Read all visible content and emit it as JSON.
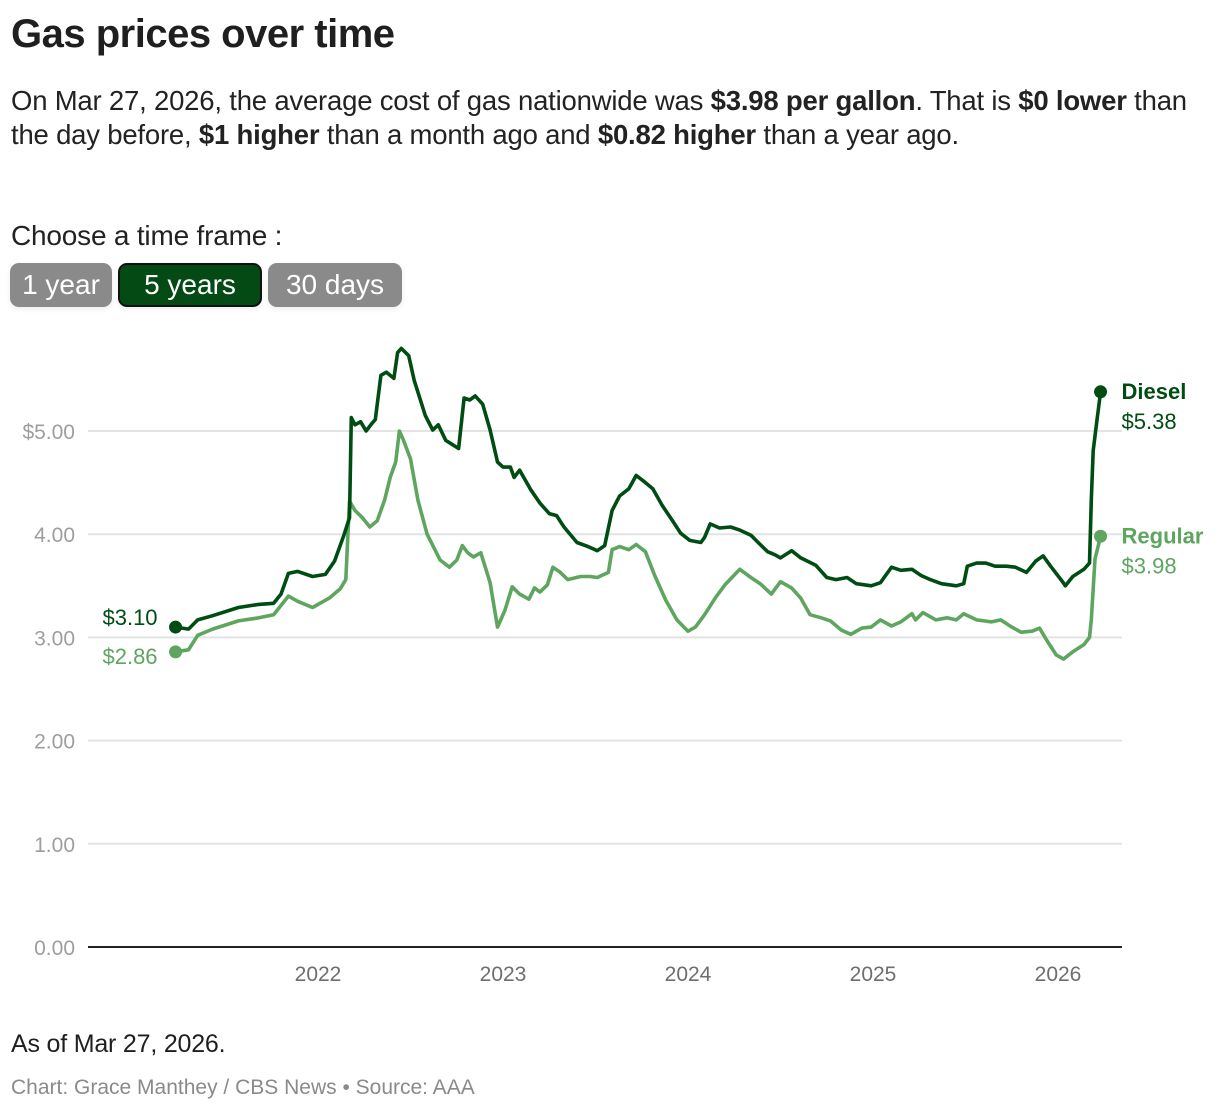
{
  "header": {
    "title": "Gas prices over time",
    "summary": {
      "p1": "On Mar 27, 2026, the average cost of gas nationwide was ",
      "b1": "$3.98 per gallon",
      "p2": ". That is ",
      "b2": "$0 lower",
      "p3": " than the day before, ",
      "b3": "$1 higher",
      "p4": " than a month ago and ",
      "b4": "$0.82 higher",
      "p5": " than a year ago."
    }
  },
  "controls": {
    "label": "Choose a time frame :",
    "buttons": [
      {
        "label": "1 year",
        "active": false
      },
      {
        "label": "5 years",
        "active": true
      },
      {
        "label": "30 days",
        "active": false
      }
    ]
  },
  "colors": {
    "diesel": "#004d14",
    "regular": "#5ea55f",
    "active_button": "#034a14",
    "inactive_button": "#8a8a8a",
    "grid": "#e3e3e3",
    "axis": "#222222"
  },
  "chart_data": {
    "type": "line",
    "title": "Gas prices over time",
    "xlabel": "",
    "ylabel": "",
    "ylim": [
      0,
      5.8
    ],
    "xlim": [
      2021.23,
      2026.23
    ],
    "grid": true,
    "y_ticks": [
      {
        "value": 0,
        "label": "0.00"
      },
      {
        "value": 1,
        "label": "1.00"
      },
      {
        "value": 2,
        "label": "2.00"
      },
      {
        "value": 3,
        "label": "3.00"
      },
      {
        "value": 4,
        "label": "4.00"
      },
      {
        "value": 5,
        "label": "$5.00"
      }
    ],
    "x_ticks": [
      {
        "value": 2022,
        "label": "2022"
      },
      {
        "value": 2023,
        "label": "2023"
      },
      {
        "value": 2024,
        "label": "2024"
      },
      {
        "value": 2025,
        "label": "2025"
      },
      {
        "value": 2026,
        "label": "2026"
      }
    ],
    "legend": "inline-right",
    "series": [
      {
        "name": "Diesel",
        "start_label": "$3.10",
        "end_label": "$5.38",
        "start_value": 3.1,
        "end_value": 5.38,
        "points": [
          [
            2021.23,
            3.1
          ],
          [
            2021.3,
            3.08
          ],
          [
            2021.35,
            3.17
          ],
          [
            2021.43,
            3.21
          ],
          [
            2021.57,
            3.29
          ],
          [
            2021.68,
            3.32
          ],
          [
            2021.76,
            3.33
          ],
          [
            2021.8,
            3.42
          ],
          [
            2021.84,
            3.62
          ],
          [
            2021.89,
            3.64
          ],
          [
            2021.97,
            3.59
          ],
          [
            2022.04,
            3.61
          ],
          [
            2022.09,
            3.74
          ],
          [
            2022.14,
            3.99
          ],
          [
            2022.17,
            4.16
          ],
          [
            2022.18,
            5.13
          ],
          [
            2022.2,
            5.06
          ],
          [
            2022.23,
            5.09
          ],
          [
            2022.26,
            5.0
          ],
          [
            2022.29,
            5.07
          ],
          [
            2022.31,
            5.11
          ],
          [
            2022.34,
            5.54
          ],
          [
            2022.37,
            5.57
          ],
          [
            2022.41,
            5.51
          ],
          [
            2022.43,
            5.76
          ],
          [
            2022.45,
            5.8
          ],
          [
            2022.49,
            5.73
          ],
          [
            2022.52,
            5.49
          ],
          [
            2022.58,
            5.15
          ],
          [
            2022.62,
            5.01
          ],
          [
            2022.65,
            5.06
          ],
          [
            2022.69,
            4.91
          ],
          [
            2022.76,
            4.83
          ],
          [
            2022.79,
            5.32
          ],
          [
            2022.82,
            5.3
          ],
          [
            2022.85,
            5.34
          ],
          [
            2022.89,
            5.26
          ],
          [
            2022.93,
            5.01
          ],
          [
            2022.97,
            4.7
          ],
          [
            2023.0,
            4.65
          ],
          [
            2023.04,
            4.65
          ],
          [
            2023.06,
            4.55
          ],
          [
            2023.09,
            4.62
          ],
          [
            2023.15,
            4.43
          ],
          [
            2023.2,
            4.3
          ],
          [
            2023.25,
            4.2
          ],
          [
            2023.29,
            4.18
          ],
          [
            2023.33,
            4.07
          ],
          [
            2023.4,
            3.92
          ],
          [
            2023.46,
            3.88
          ],
          [
            2023.51,
            3.84
          ],
          [
            2023.55,
            3.89
          ],
          [
            2023.59,
            4.23
          ],
          [
            2023.63,
            4.37
          ],
          [
            2023.68,
            4.44
          ],
          [
            2023.72,
            4.57
          ],
          [
            2023.77,
            4.5
          ],
          [
            2023.81,
            4.44
          ],
          [
            2023.86,
            4.28
          ],
          [
            2023.92,
            4.12
          ],
          [
            2023.96,
            4.01
          ],
          [
            2024.01,
            3.94
          ],
          [
            2024.07,
            3.92
          ],
          [
            2024.09,
            3.97
          ],
          [
            2024.12,
            4.1
          ],
          [
            2024.17,
            4.06
          ],
          [
            2024.23,
            4.07
          ],
          [
            2024.28,
            4.04
          ],
          [
            2024.34,
            3.99
          ],
          [
            2024.39,
            3.9
          ],
          [
            2024.43,
            3.83
          ],
          [
            2024.47,
            3.8
          ],
          [
            2024.5,
            3.77
          ],
          [
            2024.56,
            3.84
          ],
          [
            2024.61,
            3.77
          ],
          [
            2024.69,
            3.7
          ],
          [
            2024.75,
            3.58
          ],
          [
            2024.8,
            3.56
          ],
          [
            2024.86,
            3.58
          ],
          [
            2024.91,
            3.52
          ],
          [
            2024.99,
            3.5
          ],
          [
            2025.04,
            3.53
          ],
          [
            2025.1,
            3.68
          ],
          [
            2025.15,
            3.65
          ],
          [
            2025.21,
            3.66
          ],
          [
            2025.26,
            3.6
          ],
          [
            2025.31,
            3.56
          ],
          [
            2025.37,
            3.52
          ],
          [
            2025.45,
            3.5
          ],
          [
            2025.49,
            3.52
          ],
          [
            2025.51,
            3.69
          ],
          [
            2025.56,
            3.72
          ],
          [
            2025.61,
            3.72
          ],
          [
            2025.66,
            3.69
          ],
          [
            2025.72,
            3.69
          ],
          [
            2025.77,
            3.68
          ],
          [
            2025.83,
            3.63
          ],
          [
            2025.88,
            3.74
          ],
          [
            2025.92,
            3.79
          ],
          [
            2025.96,
            3.69
          ],
          [
            2026.02,
            3.55
          ],
          [
            2026.04,
            3.5
          ],
          [
            2026.08,
            3.59
          ],
          [
            2026.14,
            3.66
          ],
          [
            2026.17,
            3.72
          ],
          [
            2026.18,
            4.33
          ],
          [
            2026.19,
            4.81
          ],
          [
            2026.21,
            5.1
          ],
          [
            2026.23,
            5.38
          ]
        ]
      },
      {
        "name": "Regular",
        "start_label": "$2.86",
        "end_label": "$3.98",
        "start_value": 2.86,
        "end_value": 3.98,
        "points": [
          [
            2021.23,
            2.86
          ],
          [
            2021.3,
            2.88
          ],
          [
            2021.35,
            3.02
          ],
          [
            2021.43,
            3.08
          ],
          [
            2021.57,
            3.16
          ],
          [
            2021.68,
            3.19
          ],
          [
            2021.76,
            3.22
          ],
          [
            2021.84,
            3.4
          ],
          [
            2021.89,
            3.35
          ],
          [
            2021.97,
            3.29
          ],
          [
            2022.06,
            3.38
          ],
          [
            2022.12,
            3.47
          ],
          [
            2022.15,
            3.56
          ],
          [
            2022.17,
            4.32
          ],
          [
            2022.2,
            4.23
          ],
          [
            2022.24,
            4.16
          ],
          [
            2022.28,
            4.07
          ],
          [
            2022.32,
            4.13
          ],
          [
            2022.36,
            4.33
          ],
          [
            2022.39,
            4.55
          ],
          [
            2022.42,
            4.7
          ],
          [
            2022.44,
            5.0
          ],
          [
            2022.46,
            4.92
          ],
          [
            2022.5,
            4.73
          ],
          [
            2022.54,
            4.33
          ],
          [
            2022.59,
            4.0
          ],
          [
            2022.66,
            3.75
          ],
          [
            2022.71,
            3.68
          ],
          [
            2022.75,
            3.75
          ],
          [
            2022.78,
            3.89
          ],
          [
            2022.81,
            3.82
          ],
          [
            2022.84,
            3.78
          ],
          [
            2022.88,
            3.82
          ],
          [
            2022.93,
            3.53
          ],
          [
            2022.97,
            3.1
          ],
          [
            2023.01,
            3.26
          ],
          [
            2023.05,
            3.49
          ],
          [
            2023.09,
            3.42
          ],
          [
            2023.14,
            3.37
          ],
          [
            2023.17,
            3.48
          ],
          [
            2023.2,
            3.44
          ],
          [
            2023.24,
            3.51
          ],
          [
            2023.27,
            3.68
          ],
          [
            2023.31,
            3.63
          ],
          [
            2023.35,
            3.56
          ],
          [
            2023.42,
            3.59
          ],
          [
            2023.47,
            3.59
          ],
          [
            2023.51,
            3.58
          ],
          [
            2023.57,
            3.63
          ],
          [
            2023.59,
            3.85
          ],
          [
            2023.63,
            3.88
          ],
          [
            2023.68,
            3.85
          ],
          [
            2023.72,
            3.9
          ],
          [
            2023.77,
            3.83
          ],
          [
            2023.82,
            3.6
          ],
          [
            2023.88,
            3.36
          ],
          [
            2023.94,
            3.17
          ],
          [
            2024.0,
            3.06
          ],
          [
            2024.04,
            3.1
          ],
          [
            2024.09,
            3.22
          ],
          [
            2024.15,
            3.39
          ],
          [
            2024.2,
            3.51
          ],
          [
            2024.28,
            3.66
          ],
          [
            2024.34,
            3.58
          ],
          [
            2024.39,
            3.52
          ],
          [
            2024.45,
            3.42
          ],
          [
            2024.5,
            3.54
          ],
          [
            2024.56,
            3.48
          ],
          [
            2024.61,
            3.38
          ],
          [
            2024.66,
            3.22
          ],
          [
            2024.72,
            3.19
          ],
          [
            2024.77,
            3.16
          ],
          [
            2024.83,
            3.07
          ],
          [
            2024.88,
            3.03
          ],
          [
            2024.94,
            3.09
          ],
          [
            2024.99,
            3.1
          ],
          [
            2025.04,
            3.17
          ],
          [
            2025.1,
            3.11
          ],
          [
            2025.15,
            3.15
          ],
          [
            2025.21,
            3.23
          ],
          [
            2025.23,
            3.17
          ],
          [
            2025.27,
            3.24
          ],
          [
            2025.34,
            3.17
          ],
          [
            2025.4,
            3.19
          ],
          [
            2025.45,
            3.17
          ],
          [
            2025.49,
            3.23
          ],
          [
            2025.56,
            3.17
          ],
          [
            2025.64,
            3.15
          ],
          [
            2025.69,
            3.17
          ],
          [
            2025.75,
            3.1
          ],
          [
            2025.8,
            3.05
          ],
          [
            2025.86,
            3.06
          ],
          [
            2025.9,
            3.09
          ],
          [
            2025.94,
            2.97
          ],
          [
            2025.99,
            2.83
          ],
          [
            2026.03,
            2.79
          ],
          [
            2026.08,
            2.86
          ],
          [
            2026.14,
            2.93
          ],
          [
            2026.17,
            3.0
          ],
          [
            2026.18,
            3.17
          ],
          [
            2026.2,
            3.76
          ],
          [
            2026.23,
            3.98
          ]
        ]
      }
    ]
  },
  "footer": {
    "note": "As of Mar 27, 2026.",
    "credit": "Chart: Grace Manthey / CBS News • Source: AAA"
  }
}
